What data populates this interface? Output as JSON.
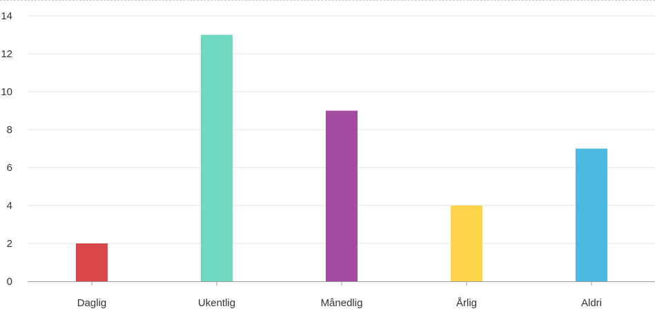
{
  "chart_data": {
    "type": "bar",
    "categories": [
      "Daglig",
      "Ukentlig",
      "Månedlig",
      "Årlig",
      "Aldri"
    ],
    "values": [
      2,
      13,
      9,
      4,
      7
    ],
    "colors": [
      "#d9474b",
      "#6ed8c0",
      "#a44ba2",
      "#fed44c",
      "#4db8e1"
    ],
    "ylim": [
      0,
      14
    ],
    "yticks": [
      "0",
      "2",
      "4",
      "6",
      "8",
      "10",
      "12",
      "14"
    ],
    "grid": true,
    "legend": "none"
  }
}
